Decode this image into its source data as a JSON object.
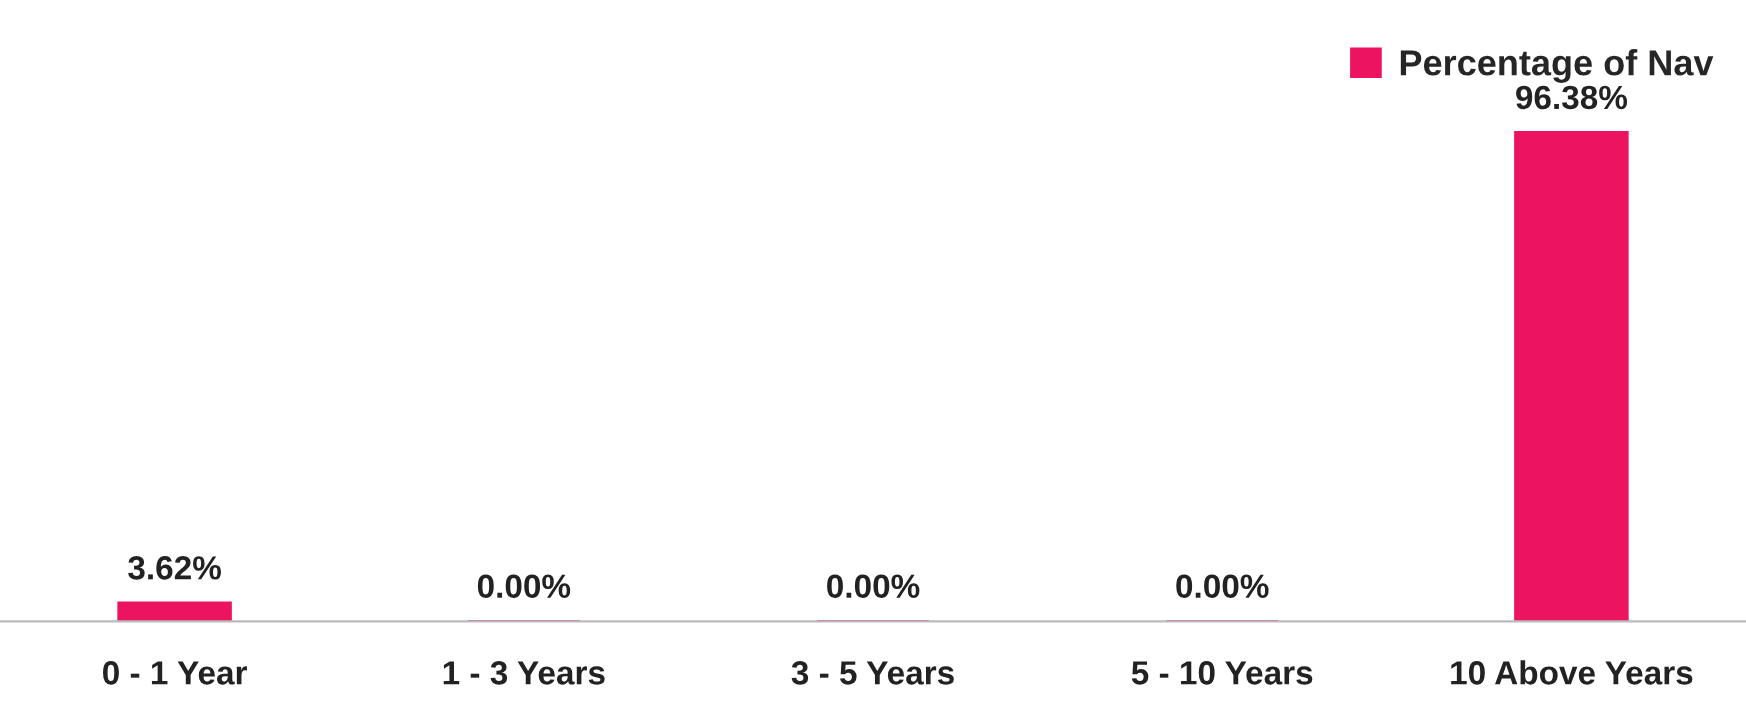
{
  "chart_data": {
    "type": "bar",
    "categories": [
      "0 - 1 Year",
      "1 - 3 Years",
      "3 - 5 Years",
      "5 - 10 Years",
      "10 Above Years"
    ],
    "series": [
      {
        "name": "Percentage of Nav",
        "color": "#ec1461",
        "values": [
          3.62,
          0.0,
          0.0,
          0.0,
          96.38
        ],
        "value_labels": [
          "3.62%",
          "0.00%",
          "0.00%",
          "0.00%",
          "96.38%"
        ]
      }
    ],
    "legend": "top right",
    "grid": false
  }
}
